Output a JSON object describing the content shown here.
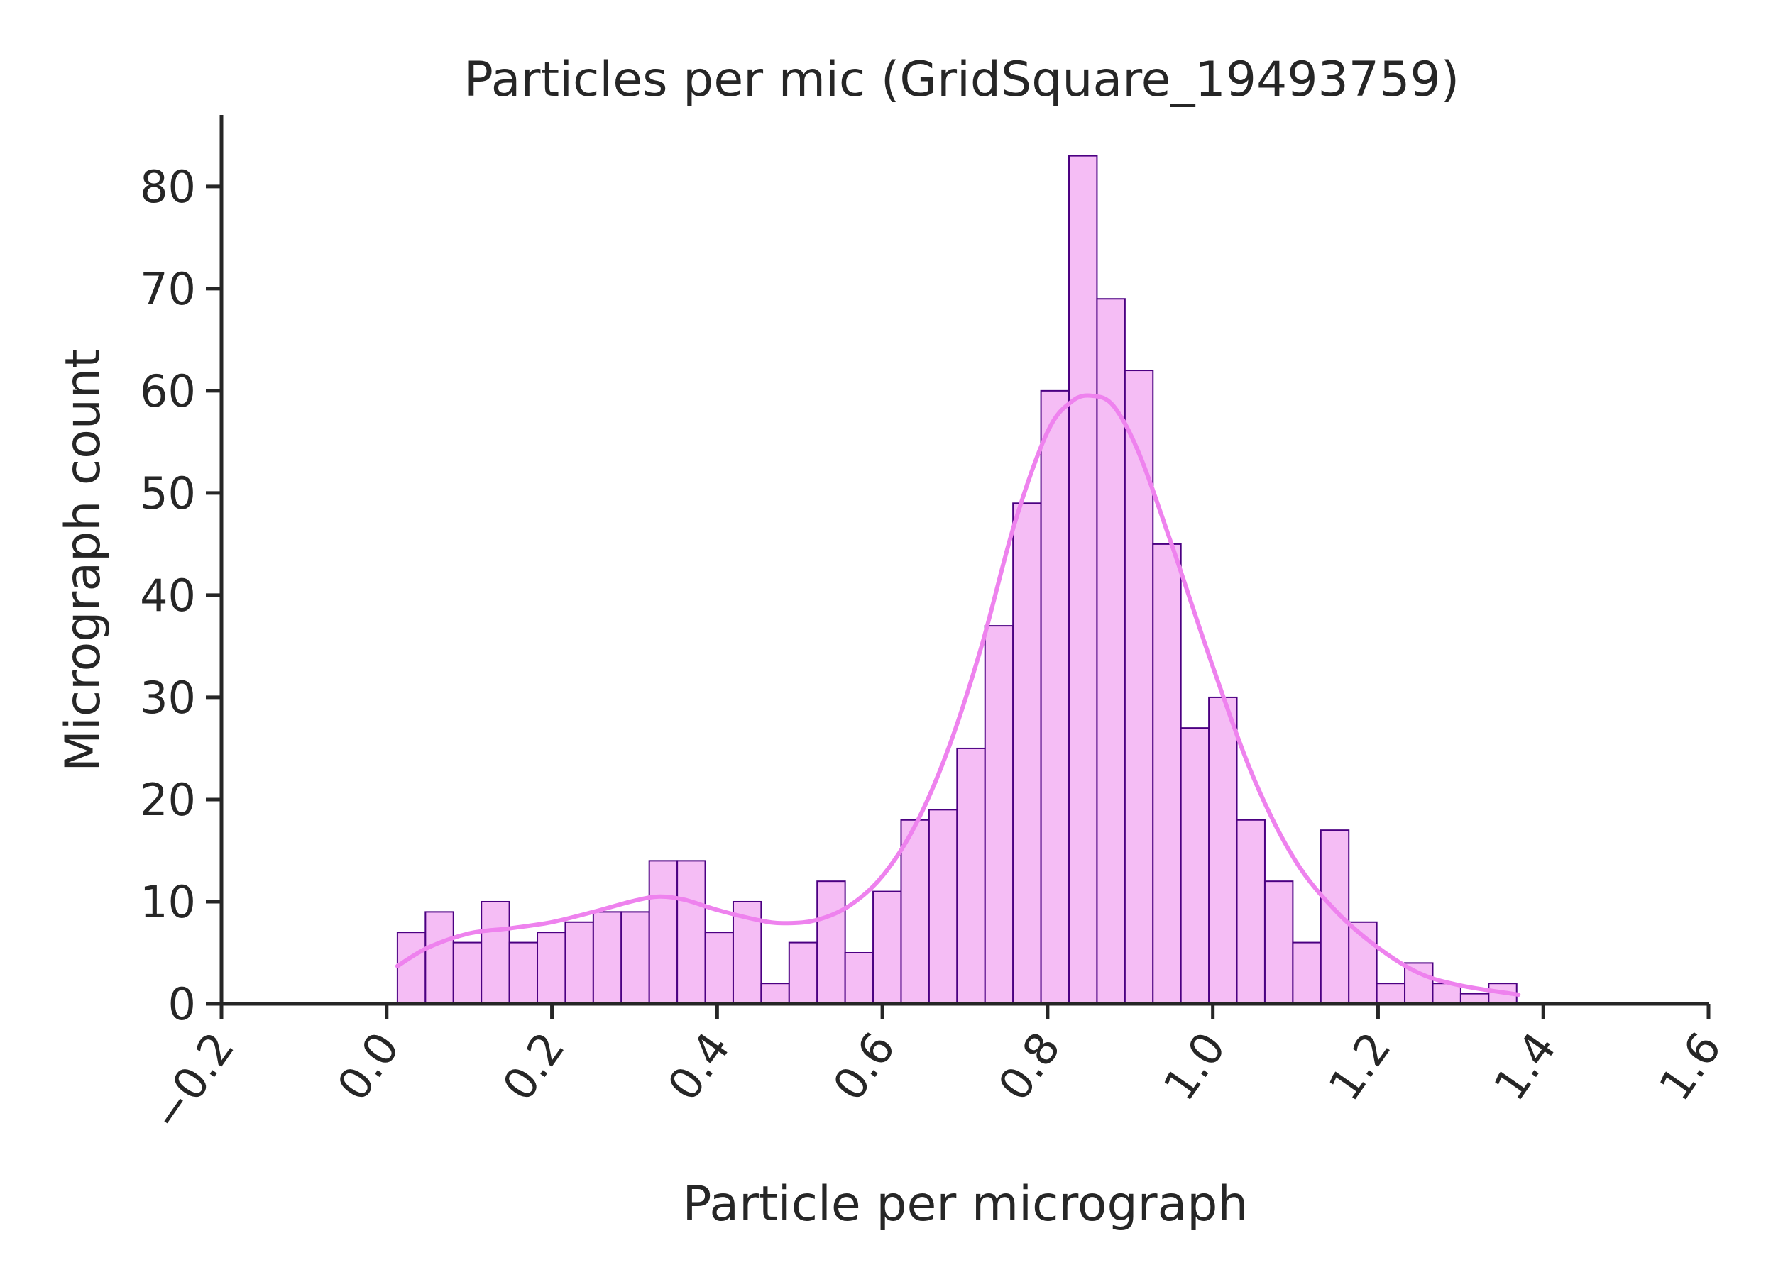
{
  "chart_data": {
    "type": "bar",
    "title": "Particles per mic (GridSquare_19493759)",
    "xlabel": "Particle per micrograph",
    "ylabel": "Micrograph count",
    "xlim": [
      -0.2,
      1.6
    ],
    "ylim": [
      0,
      87
    ],
    "xticks": [
      -0.2,
      0.0,
      0.2,
      0.4,
      0.6,
      0.8,
      1.0,
      1.2,
      1.4,
      1.6
    ],
    "xtick_labels": [
      "−0.2",
      "0.0",
      "0.2",
      "0.4",
      "0.6",
      "0.8",
      "1.0",
      "1.2",
      "1.4",
      "1.6"
    ],
    "yticks": [
      0,
      10,
      20,
      30,
      40,
      50,
      60,
      70,
      80
    ],
    "ytick_labels": [
      "0",
      "10",
      "20",
      "30",
      "40",
      "50",
      "60",
      "70",
      "80"
    ],
    "grid": false,
    "histogram": {
      "bin_start": 0.013,
      "bin_width": 0.03387,
      "counts": [
        7,
        9,
        6,
        10,
        6,
        7,
        8,
        9,
        9,
        14,
        14,
        7,
        10,
        2,
        6,
        12,
        5,
        11,
        18,
        19,
        25,
        37,
        49,
        60,
        83,
        69,
        62,
        45,
        27,
        30,
        18,
        12,
        6,
        17,
        8,
        2,
        4,
        2,
        1,
        2
      ],
      "bar_color": "#f5bdf5",
      "edge_color": "#4b0082"
    },
    "kde": {
      "color": "#ee82ee",
      "x": [
        0.013,
        0.05,
        0.1,
        0.15,
        0.2,
        0.25,
        0.3,
        0.33,
        0.36,
        0.4,
        0.45,
        0.48,
        0.52,
        0.56,
        0.6,
        0.64,
        0.68,
        0.72,
        0.76,
        0.8,
        0.83,
        0.855,
        0.88,
        0.91,
        0.95,
        1.0,
        1.05,
        1.1,
        1.15,
        1.2,
        1.25,
        1.3,
        1.37
      ],
      "y": [
        3.7,
        5.5,
        6.9,
        7.4,
        8.0,
        9.0,
        10.1,
        10.5,
        10.2,
        9.2,
        8.2,
        7.9,
        8.2,
        9.6,
        12.5,
        17.5,
        25.0,
        35.0,
        47.0,
        56.0,
        59.0,
        59.5,
        58.5,
        54.0,
        45.0,
        33.0,
        22.0,
        14.0,
        9.0,
        5.5,
        3.0,
        1.8,
        0.9
      ]
    }
  }
}
